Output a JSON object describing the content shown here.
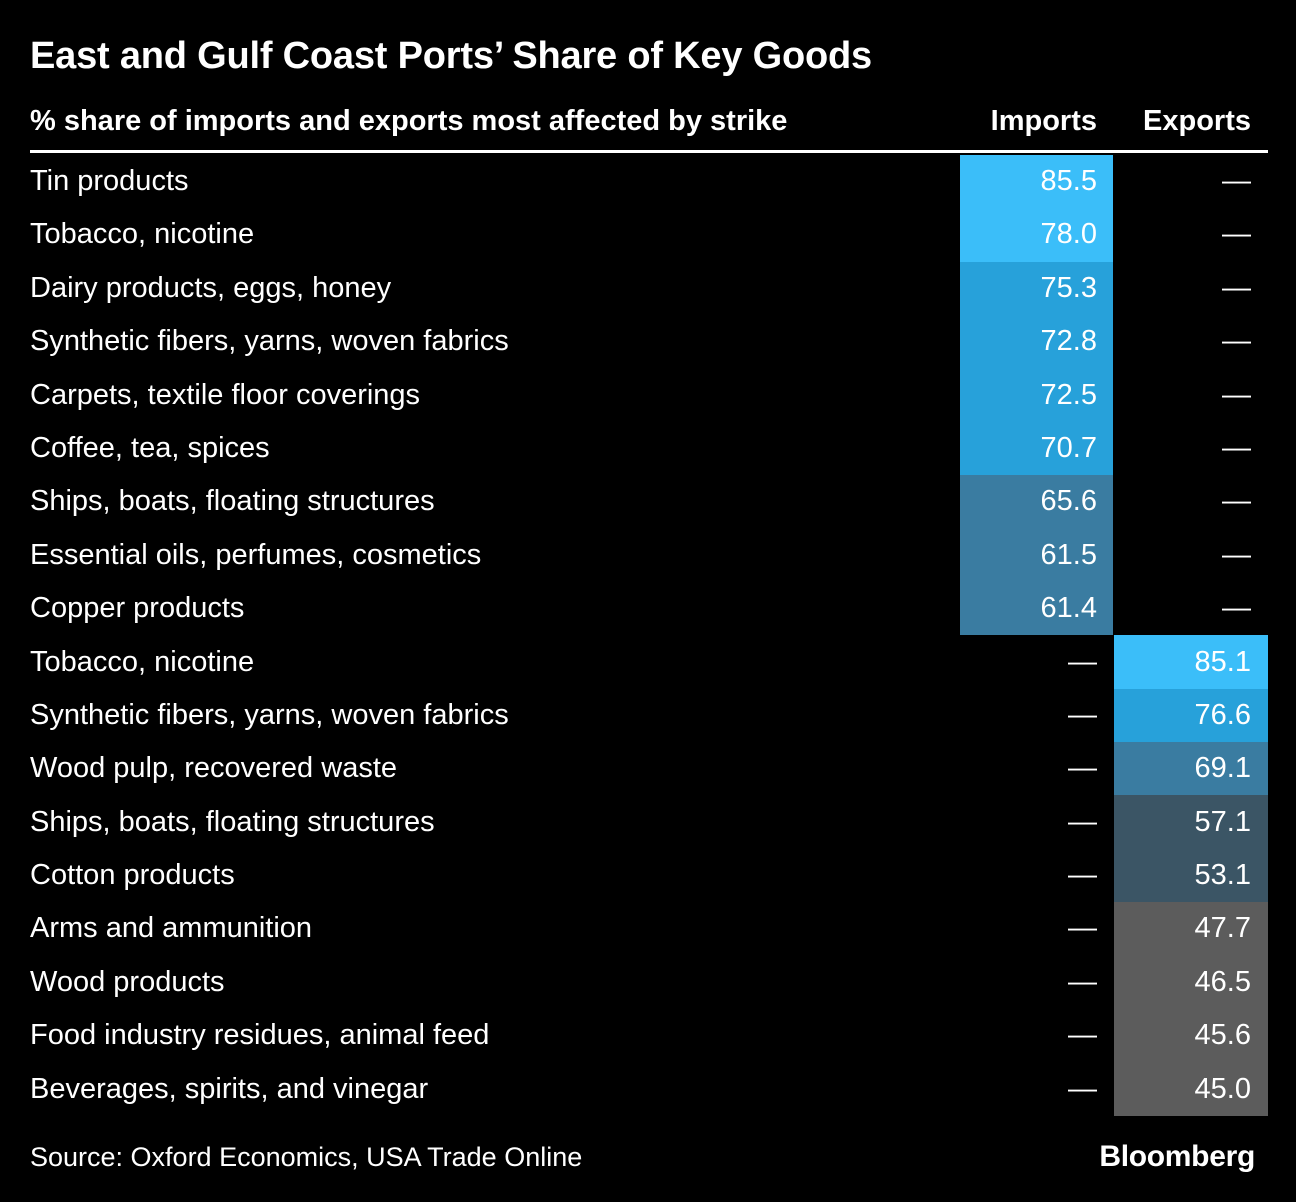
{
  "title": "East and Gulf Coast Ports’ Share of Key Goods",
  "subtitle": "% share of imports and exports most affected by strike",
  "columns": {
    "imports": "Imports",
    "exports": "Exports"
  },
  "source": "Source: Oxford Economics, USA Trade Online",
  "brand": "Bloomberg",
  "empty_marker": "—",
  "palette": {
    "background": "#000000",
    "text": "#ffffff",
    "rule": "#ffffff",
    "blue1": "#3bbef9",
    "blue2": "#27a1da",
    "blue3": "#3a7ca1",
    "slate": "#3b5565",
    "gray": "#5c5c5c"
  },
  "table": {
    "rows": [
      {
        "label": "Tin products",
        "imports": "85.5",
        "exports": null,
        "color": "blue1"
      },
      {
        "label": "Tobacco, nicotine",
        "imports": "78.0",
        "exports": null,
        "color": "blue1"
      },
      {
        "label": "Dairy products, eggs, honey",
        "imports": "75.3",
        "exports": null,
        "color": "blue2"
      },
      {
        "label": "Synthetic fibers, yarns, woven fabrics",
        "imports": "72.8",
        "exports": null,
        "color": "blue2"
      },
      {
        "label": "Carpets, textile floor coverings",
        "imports": "72.5",
        "exports": null,
        "color": "blue2"
      },
      {
        "label": "Coffee, tea, spices",
        "imports": "70.7",
        "exports": null,
        "color": "blue2"
      },
      {
        "label": "Ships, boats, floating structures",
        "imports": "65.6",
        "exports": null,
        "color": "blue3"
      },
      {
        "label": "Essential oils, perfumes, cosmetics",
        "imports": "61.5",
        "exports": null,
        "color": "blue3"
      },
      {
        "label": "Copper products",
        "imports": "61.4",
        "exports": null,
        "color": "blue3"
      },
      {
        "label": "Tobacco, nicotine",
        "imports": null,
        "exports": "85.1",
        "color": "blue1"
      },
      {
        "label": "Synthetic fibers, yarns, woven fabrics",
        "imports": null,
        "exports": "76.6",
        "color": "blue2"
      },
      {
        "label": "Wood pulp, recovered waste",
        "imports": null,
        "exports": "69.1",
        "color": "blue3"
      },
      {
        "label": "Ships, boats, floating structures",
        "imports": null,
        "exports": "57.1",
        "color": "slate"
      },
      {
        "label": "Cotton products",
        "imports": null,
        "exports": "53.1",
        "color": "slate"
      },
      {
        "label": "Arms and ammunition",
        "imports": null,
        "exports": "47.7",
        "color": "gray"
      },
      {
        "label": "Wood products",
        "imports": null,
        "exports": "46.5",
        "color": "gray"
      },
      {
        "label": "Food industry residues, animal feed",
        "imports": null,
        "exports": "45.6",
        "color": "gray"
      },
      {
        "label": "Beverages, spirits, and vinegar",
        "imports": null,
        "exports": "45.0",
        "color": "gray"
      }
    ]
  },
  "chart_data": {
    "type": "table",
    "title": "East and Gulf Coast Ports’ Share of Key Goods",
    "subtitle": "% share of imports and exports most affected by strike",
    "columns": [
      "Imports",
      "Exports"
    ],
    "rows": [
      {
        "label": "Tin products",
        "imports": 85.5,
        "exports": null
      },
      {
        "label": "Tobacco, nicotine",
        "imports": 78.0,
        "exports": null
      },
      {
        "label": "Dairy products, eggs, honey",
        "imports": 75.3,
        "exports": null
      },
      {
        "label": "Synthetic fibers, yarns, woven fabrics",
        "imports": 72.8,
        "exports": null
      },
      {
        "label": "Carpets, textile floor coverings",
        "imports": 72.5,
        "exports": null
      },
      {
        "label": "Coffee, tea, spices",
        "imports": 70.7,
        "exports": null
      },
      {
        "label": "Ships, boats, floating structures",
        "imports": 65.6,
        "exports": null
      },
      {
        "label": "Essential oils, perfumes, cosmetics",
        "imports": 61.5,
        "exports": null
      },
      {
        "label": "Copper products",
        "imports": 61.4,
        "exports": null
      },
      {
        "label": "Tobacco, nicotine",
        "imports": null,
        "exports": 85.1
      },
      {
        "label": "Synthetic fibers, yarns, woven fabrics",
        "imports": null,
        "exports": 76.6
      },
      {
        "label": "Wood pulp, recovered waste",
        "imports": null,
        "exports": 69.1
      },
      {
        "label": "Ships, boats, floating structures",
        "imports": null,
        "exports": 57.1
      },
      {
        "label": "Cotton products",
        "imports": null,
        "exports": 53.1
      },
      {
        "label": "Arms and ammunition",
        "imports": null,
        "exports": 47.7
      },
      {
        "label": "Wood products",
        "imports": null,
        "exports": 46.5
      },
      {
        "label": "Food industry residues, animal feed",
        "imports": null,
        "exports": 45.6
      },
      {
        "label": "Beverages, spirits, and vinegar",
        "imports": null,
        "exports": 45.0
      }
    ],
    "value_unit": "%",
    "color_buckets": [
      {
        "range": ">=78",
        "color": "#3bbef9"
      },
      {
        "range": "70-78",
        "color": "#27a1da"
      },
      {
        "range": "60-70",
        "color": "#3a7ca1"
      },
      {
        "range": "50-60",
        "color": "#3b5565"
      },
      {
        "range": "<50",
        "color": "#5c5c5c"
      }
    ],
    "source": "Source: Oxford Economics, USA Trade Online"
  }
}
